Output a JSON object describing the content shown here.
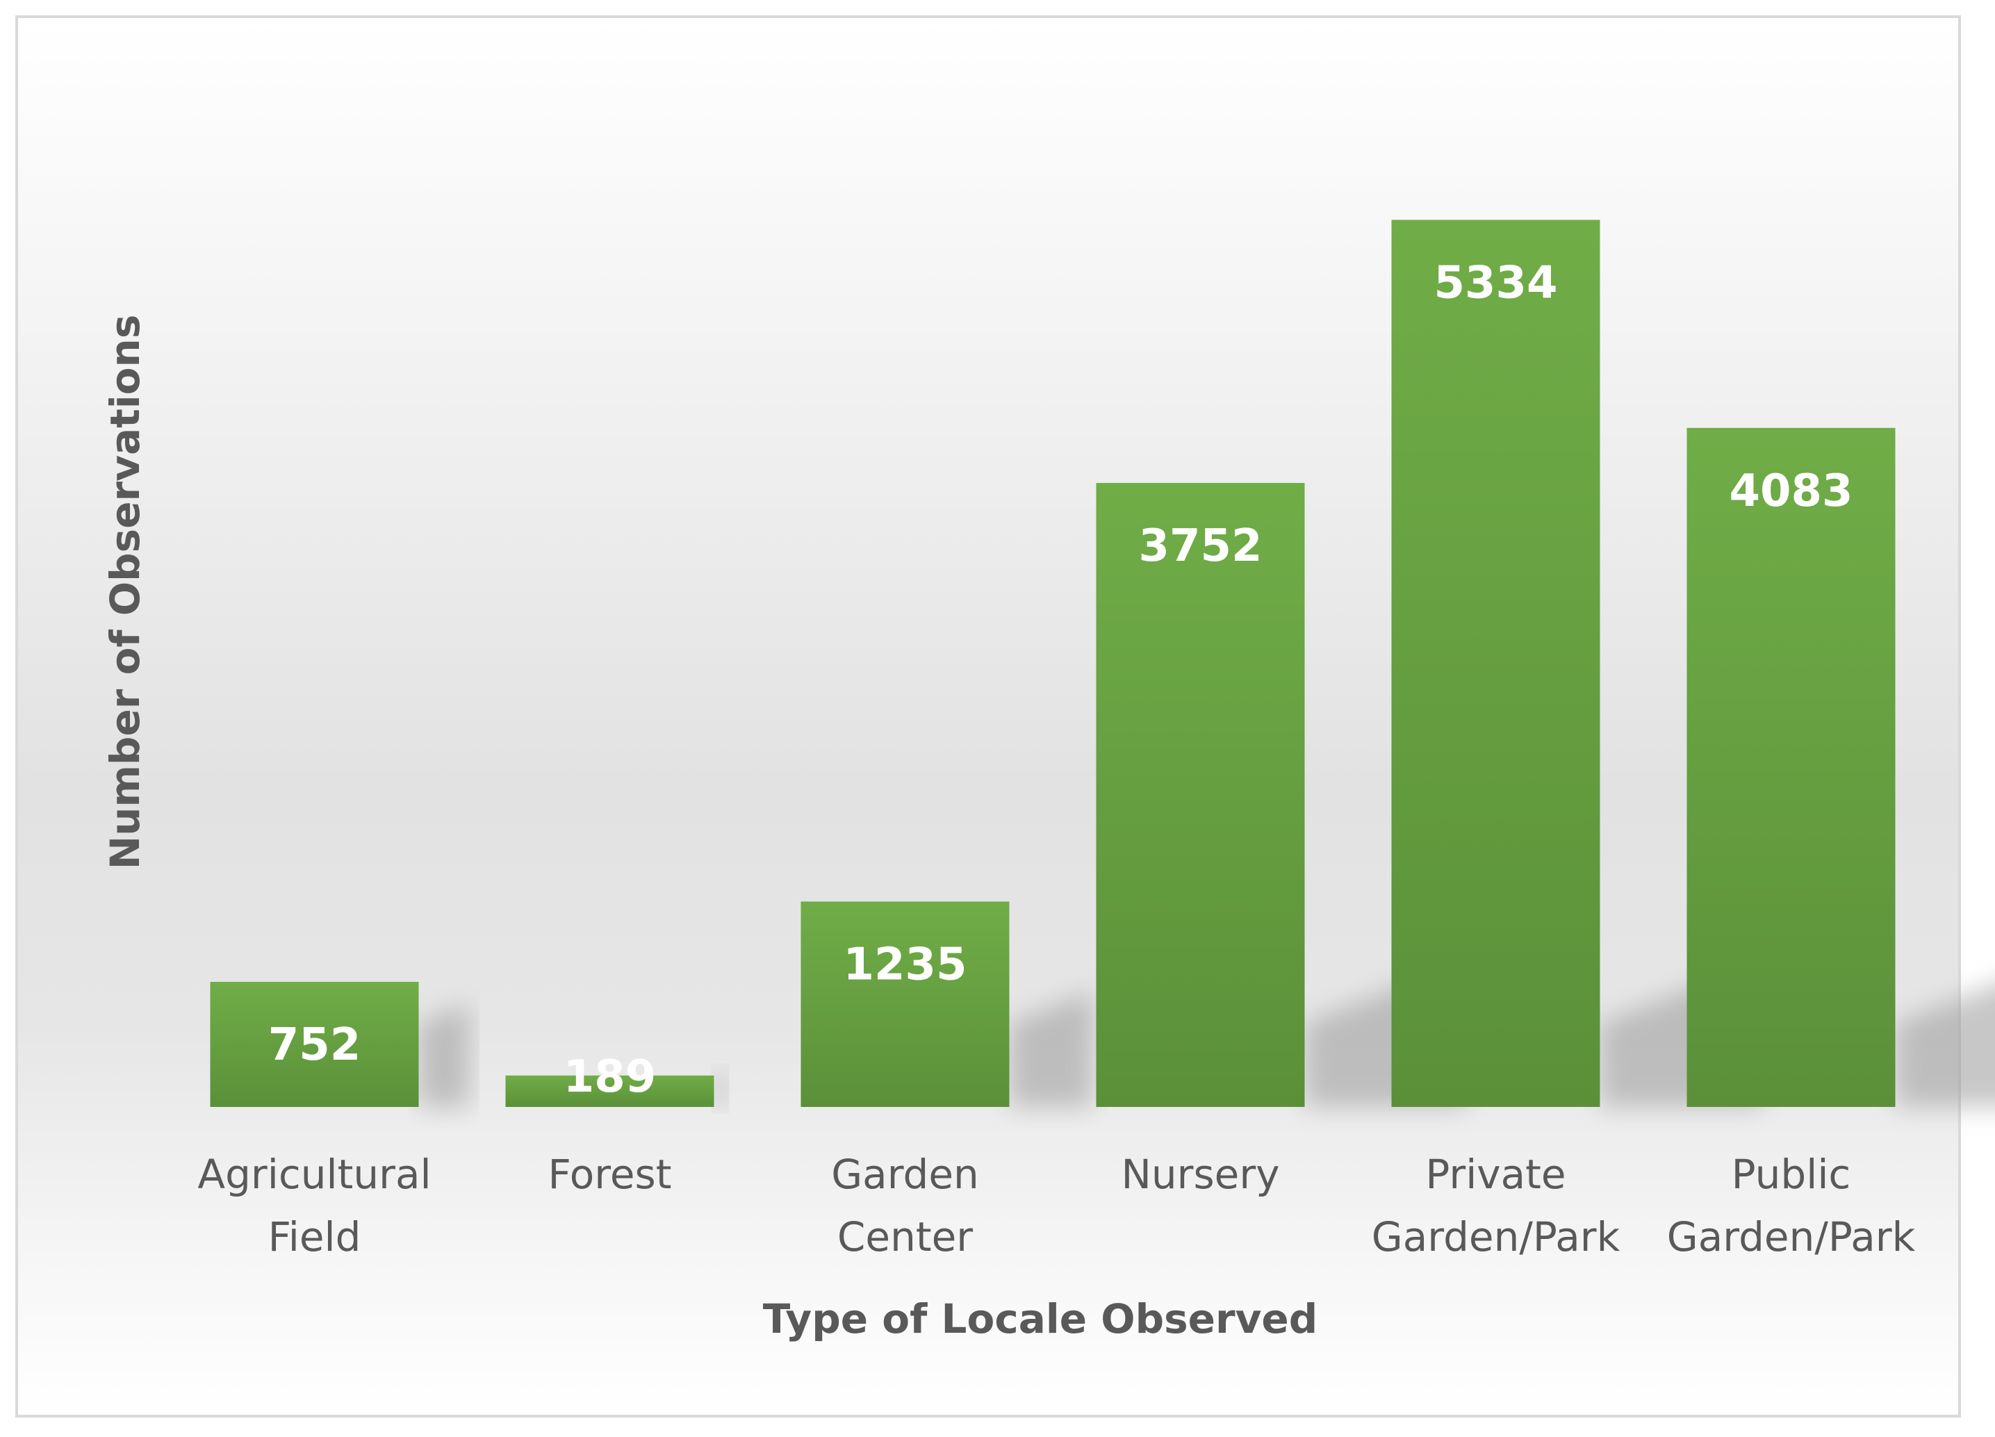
{
  "chart_data": {
    "type": "bar",
    "categories": [
      [
        "Agricultural",
        "Field"
      ],
      [
        "Forest"
      ],
      [
        "Garden",
        "Center"
      ],
      [
        "Nursery"
      ],
      [
        "Private",
        "Garden/Park"
      ],
      [
        "Public",
        "Garden/Park"
      ]
    ],
    "values": [
      752,
      189,
      1235,
      3752,
      5334,
      4083
    ],
    "data_labels": [
      "752",
      "189",
      "1235",
      "3752",
      "5334",
      "4083"
    ],
    "xlabel": "Type of Locale Observed",
    "ylabel": "Number of Observations",
    "ylim": [
      0,
      6000
    ],
    "grid": false,
    "legend": "none",
    "bar_color": "#70ad47",
    "bar_color_dark": "#5b9039",
    "label_color": "#ffffff",
    "text_color": "#595959"
  }
}
